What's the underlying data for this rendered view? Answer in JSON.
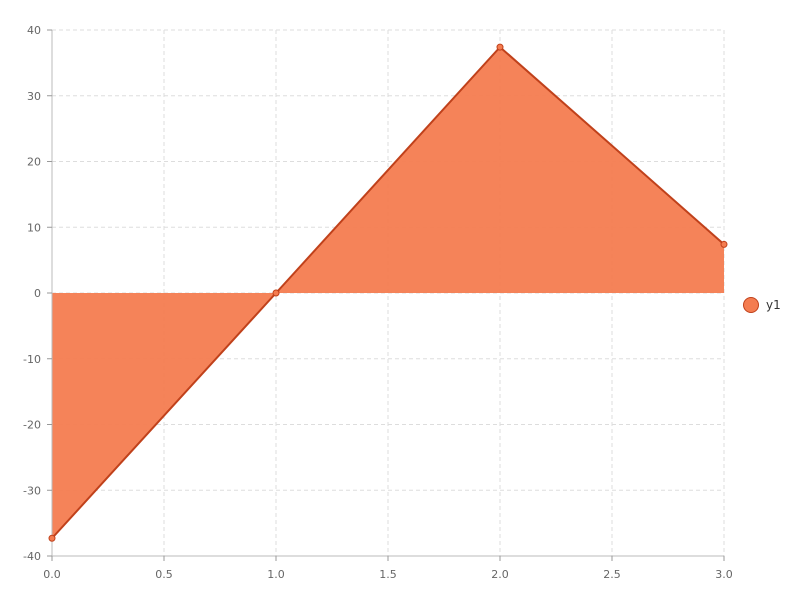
{
  "chart_data": {
    "type": "area",
    "x": [
      0,
      1,
      2,
      3
    ],
    "series": [
      {
        "name": "y1",
        "values": [
          -37.3,
          0,
          37.4,
          7.4
        ],
        "fill_color": "#f47c50",
        "line_color": "#c0411b"
      }
    ],
    "xlim": [
      0,
      3
    ],
    "ylim": [
      -40,
      40
    ],
    "x_ticks": [
      "0.0",
      "0.5",
      "1.0",
      "1.5",
      "2.0",
      "2.5",
      "3.0"
    ],
    "y_ticks": [
      "40",
      "30",
      "20",
      "10",
      "0",
      "-10",
      "-20",
      "-30",
      "-40"
    ],
    "grid": true,
    "legend_position": "right"
  }
}
